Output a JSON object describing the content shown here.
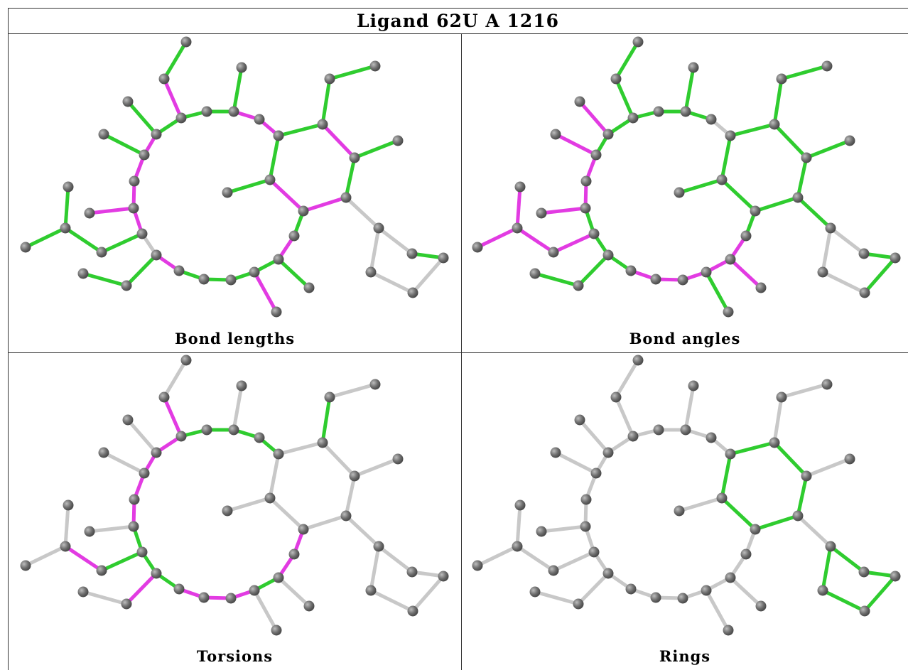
{
  "title": "Ligand 62U A 1216",
  "panels": [
    {
      "caption": "Bond lengths"
    },
    {
      "caption": "Bond angles"
    },
    {
      "caption": "Torsions"
    },
    {
      "caption": "Rings"
    }
  ],
  "colors": {
    "green": "#2fcc2f",
    "magenta": "#e23be2",
    "grey": "#c8c8c8",
    "atom": "#6e6e6e",
    "border": "#333333"
  }
}
